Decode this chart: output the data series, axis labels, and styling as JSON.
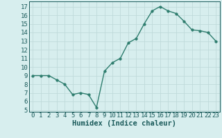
{
  "x": [
    0,
    1,
    2,
    3,
    4,
    5,
    6,
    7,
    8,
    9,
    10,
    11,
    12,
    13,
    14,
    15,
    16,
    17,
    18,
    19,
    20,
    21,
    22,
    23
  ],
  "y": [
    9.0,
    9.0,
    9.0,
    8.5,
    8.0,
    6.8,
    7.0,
    6.8,
    5.3,
    9.5,
    10.5,
    11.0,
    12.8,
    13.3,
    15.0,
    16.5,
    17.0,
    16.5,
    16.2,
    15.3,
    14.3,
    14.2,
    14.0,
    13.0
  ],
  "line_color": "#2e7d6e",
  "marker": "o",
  "markersize": 2.5,
  "linewidth": 1.0,
  "bg_color": "#d7eeee",
  "grid_color": "#c0dada",
  "xlabel": "Humidex (Indice chaleur)",
  "xlabel_fontsize": 7.5,
  "xlabel_fontweight": "bold",
  "xlim": [
    -0.5,
    23.5
  ],
  "ylim": [
    4.8,
    17.6
  ],
  "yticks": [
    5,
    6,
    7,
    8,
    9,
    10,
    11,
    12,
    13,
    14,
    15,
    16,
    17
  ],
  "xticks": [
    0,
    1,
    2,
    3,
    4,
    5,
    6,
    7,
    8,
    9,
    10,
    11,
    12,
    13,
    14,
    15,
    16,
    17,
    18,
    19,
    20,
    21,
    22,
    23
  ],
  "tick_fontsize": 6.5,
  "tick_color": "#1a5a5a"
}
